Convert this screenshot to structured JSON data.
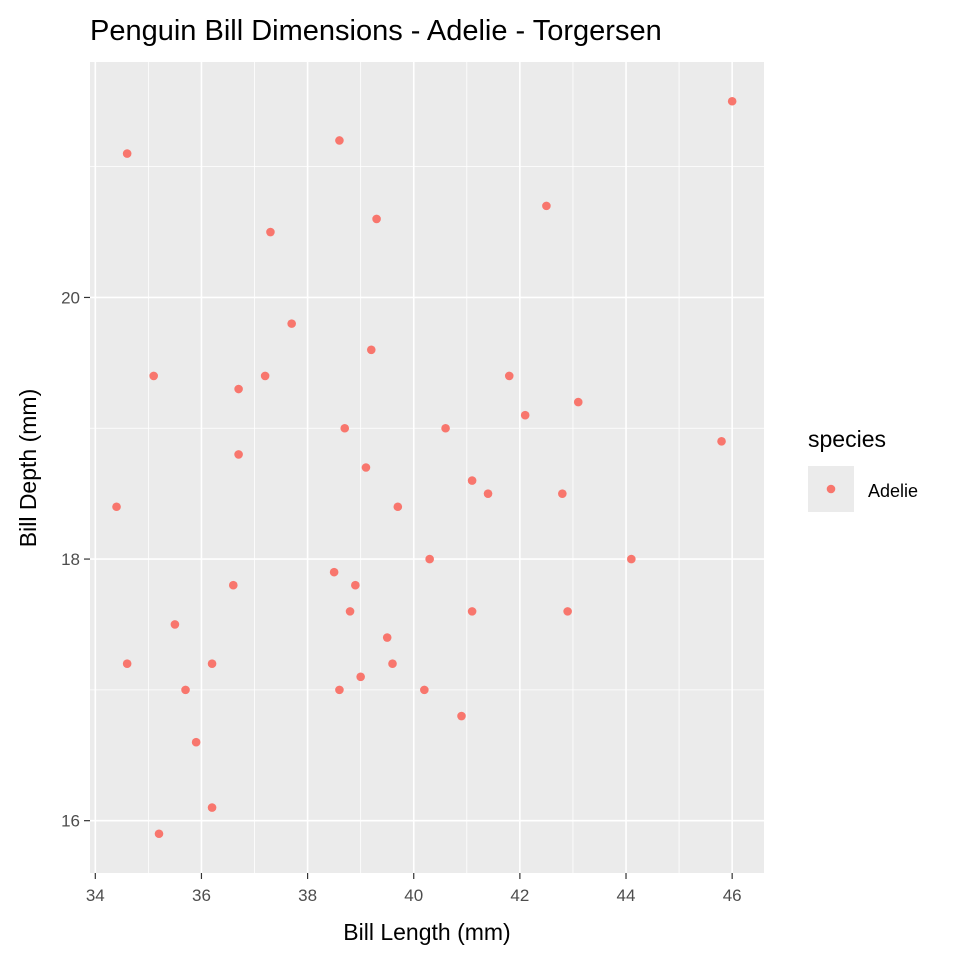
{
  "chart_data": {
    "type": "scatter",
    "title": "Penguin Bill Dimensions - Adelie - Torgersen",
    "xlabel": "Bill Length (mm)",
    "ylabel": "Bill Depth (mm)",
    "xlim": [
      33.9,
      46.6
    ],
    "ylim": [
      15.6,
      21.8
    ],
    "x_ticks": [
      34,
      36,
      38,
      40,
      42,
      44,
      46
    ],
    "y_ticks": [
      16,
      18,
      20
    ],
    "x_tick_labels": [
      "34",
      "36",
      "38",
      "40",
      "42",
      "44",
      "46"
    ],
    "y_tick_labels": [
      "16",
      "18",
      "20"
    ],
    "grid": true,
    "legend": {
      "title": "species",
      "position": "right",
      "entries": [
        "Adelie"
      ]
    },
    "series": [
      {
        "name": "Adelie",
        "color": "#F8766D",
        "x": [
          46.0,
          38.6,
          34.6,
          42.5,
          39.3,
          37.3,
          37.7,
          39.2,
          35.1,
          37.2,
          41.8,
          36.7,
          43.1,
          42.1,
          38.7,
          40.6,
          45.8,
          36.7,
          39.1,
          41.1,
          41.4,
          42.8,
          34.4,
          39.7,
          40.3,
          44.1,
          38.5,
          36.6,
          38.9,
          38.8,
          41.1,
          42.9,
          35.5,
          39.5,
          34.6,
          36.2,
          39.6,
          39.0,
          35.7,
          38.6,
          40.2,
          40.9,
          35.9,
          36.2,
          35.2
        ],
        "y": [
          21.5,
          21.2,
          21.1,
          20.7,
          20.6,
          20.5,
          19.8,
          19.6,
          19.4,
          19.4,
          19.4,
          19.3,
          19.2,
          19.1,
          19.0,
          19.0,
          18.9,
          18.8,
          18.7,
          18.6,
          18.5,
          18.5,
          18.4,
          18.4,
          18.0,
          18.0,
          17.9,
          17.8,
          17.8,
          17.6,
          17.6,
          17.6,
          17.5,
          17.4,
          17.2,
          17.2,
          17.2,
          17.1,
          17.0,
          17.0,
          17.0,
          16.8,
          16.6,
          16.1,
          15.9
        ]
      }
    ]
  }
}
